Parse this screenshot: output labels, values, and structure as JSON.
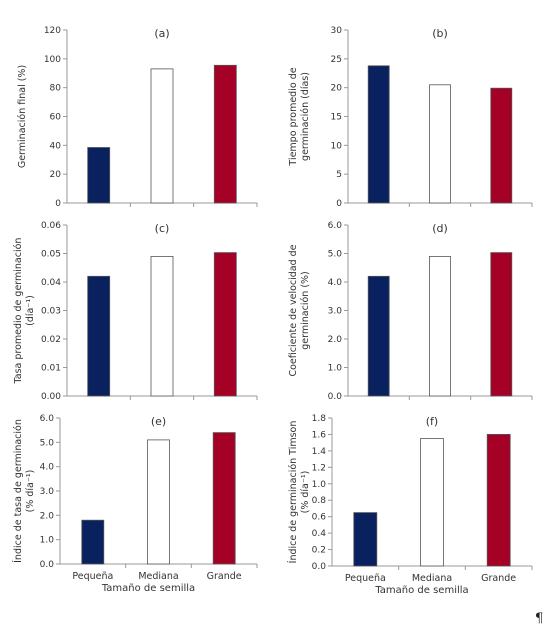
{
  "chart_data": [
    {
      "type": "bar",
      "panel": "(a)",
      "categories": [
        "Pequeña",
        "Mediana",
        "Grande"
      ],
      "values": [
        38.5,
        93,
        95.5
      ],
      "ylabel": [
        "Germinación final (%)"
      ],
      "ylim": [
        0,
        120
      ],
      "yticks": [
        "0",
        "20",
        "40",
        "60",
        "80",
        "100",
        "120"
      ],
      "ytick_values": [
        0,
        20,
        40,
        60,
        80,
        100,
        120
      ],
      "show_xlabels": false
    },
    {
      "type": "bar",
      "panel": "(b)",
      "categories": [
        "Pequeña",
        "Mediana",
        "Grande"
      ],
      "values": [
        23.8,
        20.5,
        19.9
      ],
      "ylabel": [
        "Tiempo promedio de",
        "germinación (días)"
      ],
      "ylim": [
        0,
        30
      ],
      "yticks": [
        "0",
        "5",
        "10",
        "15",
        "20",
        "25",
        "30"
      ],
      "ytick_values": [
        0,
        5,
        10,
        15,
        20,
        25,
        30
      ],
      "show_xlabels": false
    },
    {
      "type": "bar",
      "panel": "(c)",
      "categories": [
        "Pequeña",
        "Mediana",
        "Grande"
      ],
      "values": [
        0.042,
        0.049,
        0.0503
      ],
      "ylabel": [
        "Tasa promedio de germinación",
        "(día⁻¹)"
      ],
      "ylim": [
        0,
        0.06
      ],
      "yticks": [
        "0.00",
        "0.01",
        "0.02",
        "0.03",
        "0.04",
        "0.05",
        "0.06"
      ],
      "ytick_values": [
        0,
        0.01,
        0.02,
        0.03,
        0.04,
        0.05,
        0.06
      ],
      "show_xlabels": false
    },
    {
      "type": "bar",
      "panel": "(d)",
      "categories": [
        "Pequeña",
        "Mediana",
        "Grande"
      ],
      "values": [
        4.2,
        4.9,
        5.03
      ],
      "ylabel": [
        "Coeficiente de velocidad de",
        "germinación (%)"
      ],
      "ylim": [
        0,
        6
      ],
      "yticks": [
        "0.0",
        "1.0",
        "2.0",
        "3.0",
        "4.0",
        "5.0",
        "6.0"
      ],
      "ytick_values": [
        0,
        1,
        2,
        3,
        4,
        5,
        6
      ],
      "show_xlabels": false
    },
    {
      "type": "bar",
      "panel": "(e)",
      "categories": [
        "Pequeña",
        "Mediana",
        "Grande"
      ],
      "values": [
        1.8,
        5.1,
        5.4
      ],
      "ylabel": [
        "Índice de tasa de germinación",
        "(% día⁻¹)"
      ],
      "ylim": [
        0,
        6
      ],
      "yticks": [
        "0.0",
        "1.0",
        "2.0",
        "3.0",
        "4.0",
        "5.0",
        "6.0"
      ],
      "ytick_values": [
        0,
        1,
        2,
        3,
        4,
        5,
        6
      ],
      "show_xlabels": true,
      "xlabel": "Tamaño de semilla"
    },
    {
      "type": "bar",
      "panel": "(f)",
      "categories": [
        "Pequeña",
        "Mediana",
        "Grande"
      ],
      "values": [
        0.65,
        1.55,
        1.6
      ],
      "ylabel": [
        "Índice de germinación Timson",
        "(% día⁻¹)"
      ],
      "ylim": [
        0,
        1.8
      ],
      "yticks": [
        "0.0",
        "0.2",
        "0.4",
        "0.6",
        "0.8",
        "1.0",
        "1.2",
        "1.4",
        "1.6",
        "1.8"
      ],
      "ytick_values": [
        0,
        0.2,
        0.4,
        0.6,
        0.8,
        1.0,
        1.2,
        1.4,
        1.6,
        1.8
      ],
      "show_xlabels": true,
      "xlabel": "Tamaño de semilla"
    }
  ],
  "bar_colors": [
    "#0a2160",
    "#ffffff",
    "#a50026"
  ],
  "bar_stroke": "#555555",
  "axis_color": "#999999",
  "pilcrow": "¶"
}
